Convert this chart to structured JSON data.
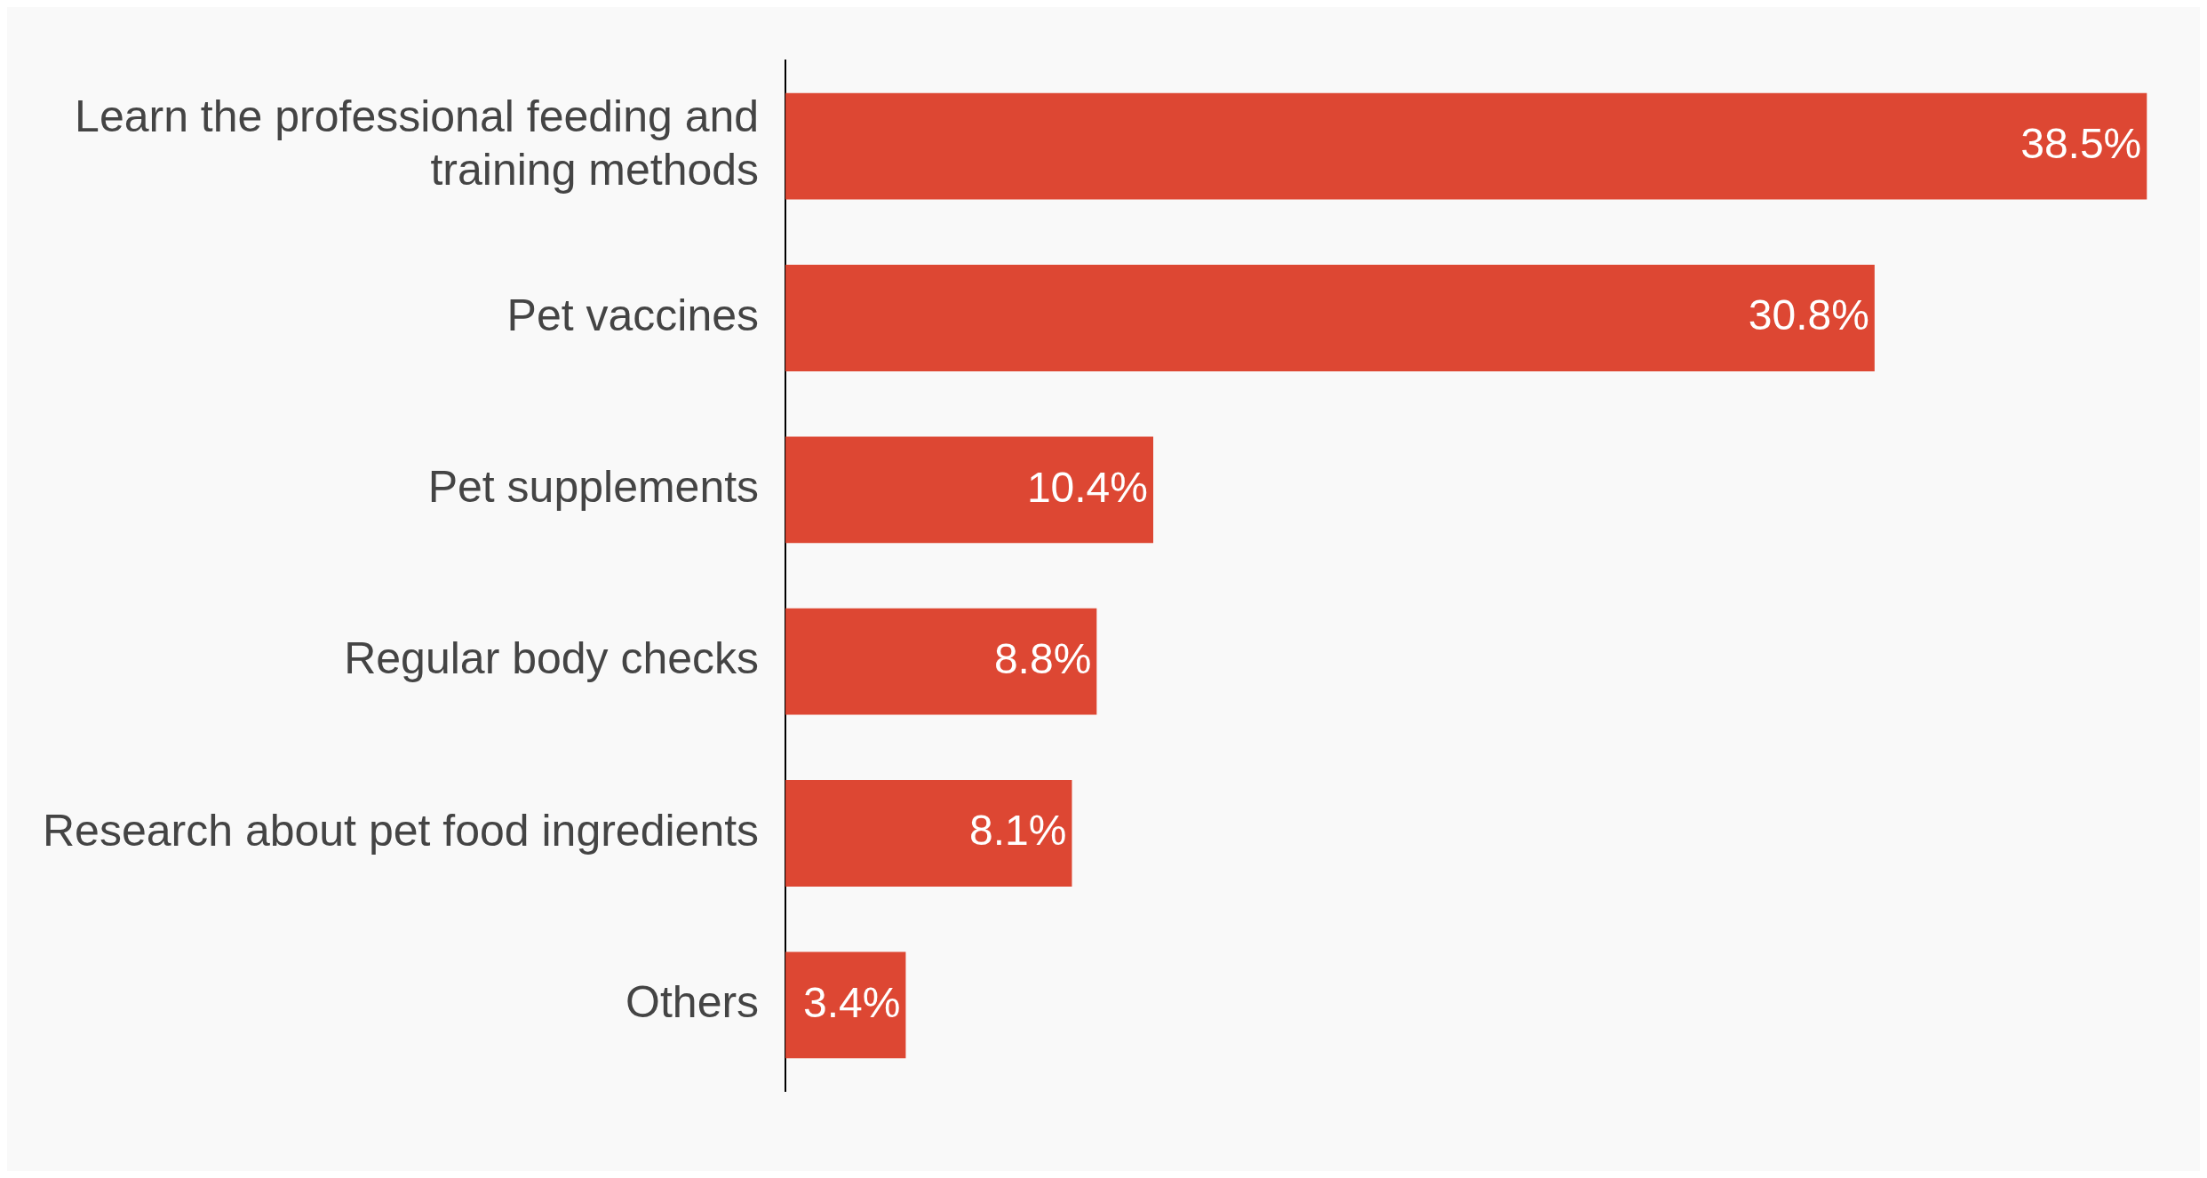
{
  "chart_data": {
    "type": "bar",
    "orientation": "horizontal",
    "categories": [
      "Learn the professional feeding and training methods",
      "Pet vaccines",
      "Pet supplements",
      "Regular body checks",
      "Research about pet food ingredients",
      "Others"
    ],
    "values": [
      38.5,
      30.8,
      10.4,
      8.8,
      8.1,
      3.4
    ],
    "value_labels": [
      "38.5%",
      "30.8%",
      "10.4%",
      "8.8%",
      "8.1%",
      "3.4%"
    ],
    "color": "#dd4733",
    "legend": false
  }
}
